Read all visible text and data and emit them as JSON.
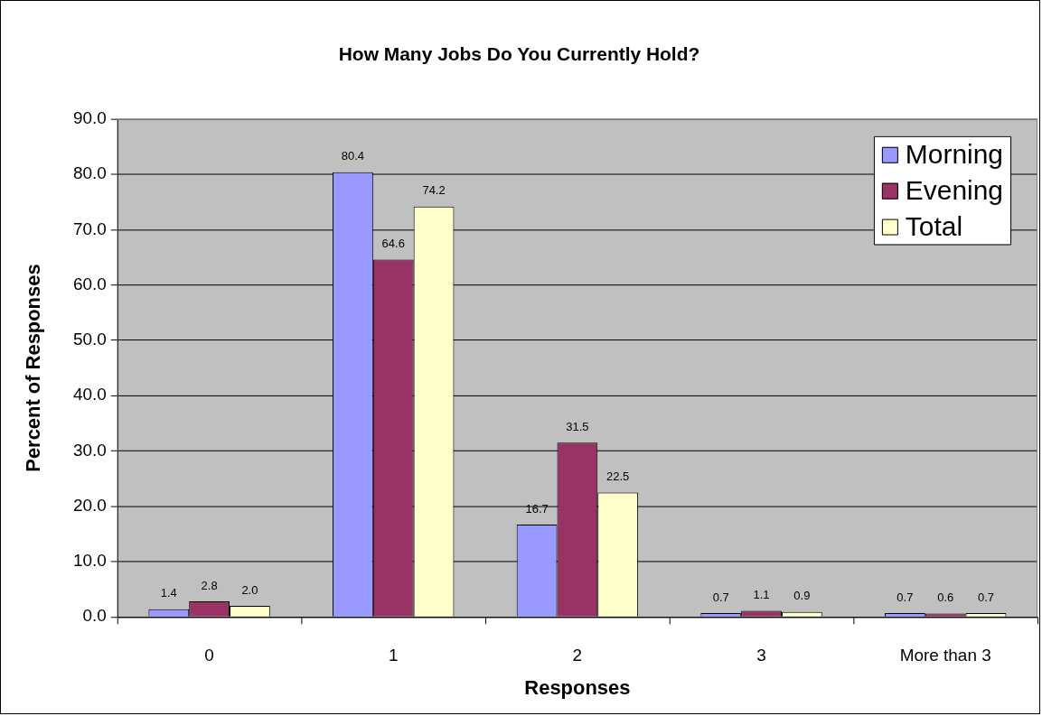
{
  "chart_data": {
    "type": "bar",
    "title": "How Many Jobs Do You Currently Hold?",
    "xlabel": "Responses",
    "ylabel": "Percent of Responses",
    "categories": [
      "0",
      "1",
      "2",
      "3",
      "More than 3"
    ],
    "series": [
      {
        "name": "Morning",
        "color": "#9999ff",
        "values": [
          1.4,
          80.4,
          16.7,
          0.7,
          0.7
        ],
        "value_labels": [
          "1.4",
          "80.4",
          "16.7",
          "0.7",
          "0.7"
        ]
      },
      {
        "name": "Evening",
        "color": "#993366",
        "values": [
          2.8,
          64.6,
          31.5,
          1.1,
          0.6
        ],
        "value_labels": [
          "2.8",
          "64.6",
          "31.5",
          "1.1",
          "0.6"
        ]
      },
      {
        "name": "Total",
        "color": "#ffffcc",
        "values": [
          2.0,
          74.2,
          22.5,
          0.9,
          0.7
        ],
        "value_labels": [
          "2.0",
          "74.2",
          "22.5",
          "0.9",
          "0.7"
        ]
      }
    ],
    "ylim": [
      0,
      90
    ],
    "yticks": [
      {
        "value": 0,
        "label": "0.0"
      },
      {
        "value": 10,
        "label": "10.0"
      },
      {
        "value": 20,
        "label": "20.0"
      },
      {
        "value": 30,
        "label": "30.0"
      },
      {
        "value": 40,
        "label": "40.0"
      },
      {
        "value": 50,
        "label": "50.0"
      },
      {
        "value": 60,
        "label": "60.0"
      },
      {
        "value": 70,
        "label": "70.0"
      },
      {
        "value": 80,
        "label": "80.0"
      },
      {
        "value": 90,
        "label": "90.0"
      }
    ],
    "grid": "y",
    "legend": "top right"
  }
}
